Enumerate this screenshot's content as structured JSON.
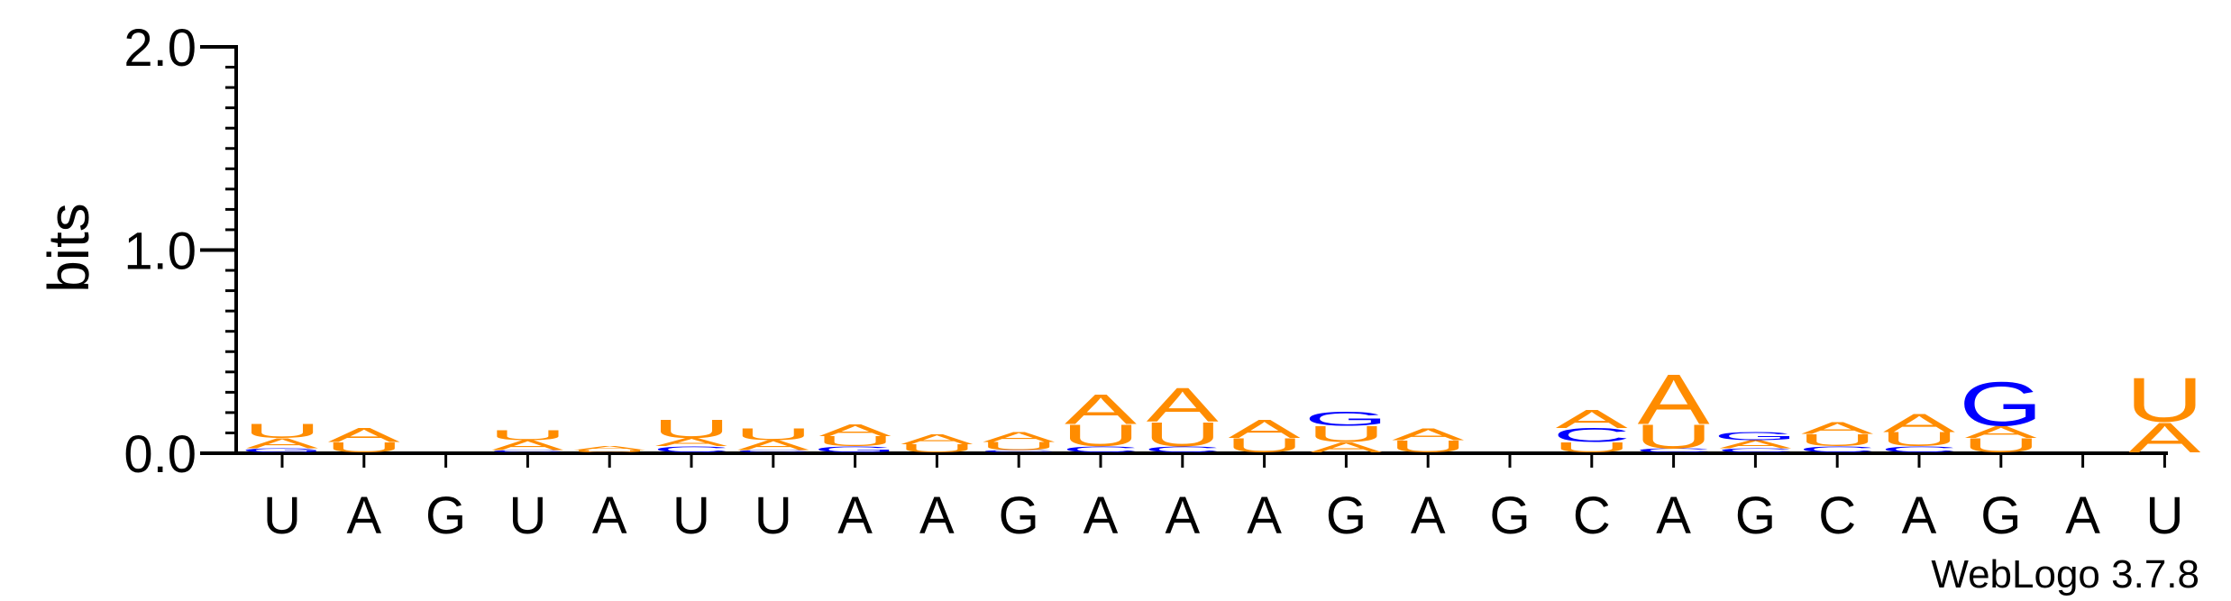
{
  "chart_data": {
    "type": "sequence-logo",
    "ylabel": "bits",
    "ylim": [
      0,
      2.0
    ],
    "yticks": [
      "0.0",
      "1.0",
      "2.0"
    ],
    "y_tick_values": [
      0,
      1,
      2
    ],
    "y_minor_step": 0.1,
    "x_labels": [
      "U",
      "A",
      "G",
      "U",
      "A",
      "U",
      "U",
      "A",
      "A",
      "G",
      "A",
      "A",
      "A",
      "G",
      "A",
      "G",
      "C",
      "A",
      "G",
      "C",
      "A",
      "G",
      "A",
      "U"
    ],
    "colors": {
      "A": "#ff8c00",
      "U": "#ff8c00",
      "G": "#0000ff",
      "C": "#0000ff"
    },
    "columns": [
      [
        {
          "base": "G",
          "bits": 0.02
        },
        {
          "base": "A",
          "bits": 0.05
        },
        {
          "base": "U",
          "bits": 0.07
        }
      ],
      [
        {
          "base": "U",
          "bits": 0.05
        },
        {
          "base": "A",
          "bits": 0.07
        }
      ],
      [],
      [
        {
          "base": "C",
          "bits": 0.01
        },
        {
          "base": "A",
          "bits": 0.05
        },
        {
          "base": "U",
          "bits": 0.05
        }
      ],
      [
        {
          "base": "U",
          "bits": 0.01
        },
        {
          "base": "A",
          "bits": 0.02
        }
      ],
      [
        {
          "base": "C",
          "bits": 0.03
        },
        {
          "base": "A",
          "bits": 0.04
        },
        {
          "base": "U",
          "bits": 0.09
        }
      ],
      [
        {
          "base": "C",
          "bits": 0.01
        },
        {
          "base": "A",
          "bits": 0.05
        },
        {
          "base": "U",
          "bits": 0.06
        }
      ],
      [
        {
          "base": "G",
          "bits": 0.03
        },
        {
          "base": "U",
          "bits": 0.05
        },
        {
          "base": "A",
          "bits": 0.06
        }
      ],
      [
        {
          "base": "U",
          "bits": 0.04
        },
        {
          "base": "A",
          "bits": 0.05
        }
      ],
      [
        {
          "base": "C",
          "bits": 0.01
        },
        {
          "base": "U",
          "bits": 0.04
        },
        {
          "base": "A",
          "bits": 0.05
        }
      ],
      [
        {
          "base": "C",
          "bits": 0.03
        },
        {
          "base": "U",
          "bits": 0.11
        },
        {
          "base": "A",
          "bits": 0.15
        }
      ],
      [
        {
          "base": "C",
          "bits": 0.03
        },
        {
          "base": "U",
          "bits": 0.12
        },
        {
          "base": "A",
          "bits": 0.17
        }
      ],
      [
        {
          "base": "U",
          "bits": 0.07
        },
        {
          "base": "A",
          "bits": 0.09
        }
      ],
      [
        {
          "base": "A",
          "bits": 0.05
        },
        {
          "base": "U",
          "bits": 0.08
        },
        {
          "base": "G",
          "bits": 0.07
        }
      ],
      [
        {
          "base": "U",
          "bits": 0.06
        },
        {
          "base": "A",
          "bits": 0.06
        }
      ],
      [],
      [
        {
          "base": "U",
          "bits": 0.05
        },
        {
          "base": "C",
          "bits": 0.07
        },
        {
          "base": "A",
          "bits": 0.09
        }
      ],
      [
        {
          "base": "C",
          "bits": 0.02
        },
        {
          "base": "U",
          "bits": 0.12
        },
        {
          "base": "A",
          "bits": 0.25
        }
      ],
      [
        {
          "base": "C",
          "bits": 0.02
        },
        {
          "base": "A",
          "bits": 0.04
        },
        {
          "base": "G",
          "bits": 0.04
        }
      ],
      [
        {
          "base": "C",
          "bits": 0.03
        },
        {
          "base": "U",
          "bits": 0.06
        },
        {
          "base": "A",
          "bits": 0.06
        }
      ],
      [
        {
          "base": "C",
          "bits": 0.03
        },
        {
          "base": "U",
          "bits": 0.07
        },
        {
          "base": "A",
          "bits": 0.09
        }
      ],
      [
        {
          "base": "U",
          "bits": 0.07
        },
        {
          "base": "A",
          "bits": 0.06
        },
        {
          "base": "G",
          "bits": 0.22
        }
      ],
      [],
      [
        {
          "base": "A",
          "bits": 0.15
        },
        {
          "base": "U",
          "bits": 0.22
        }
      ]
    ]
  },
  "credit": "WebLogo 3.7.8"
}
